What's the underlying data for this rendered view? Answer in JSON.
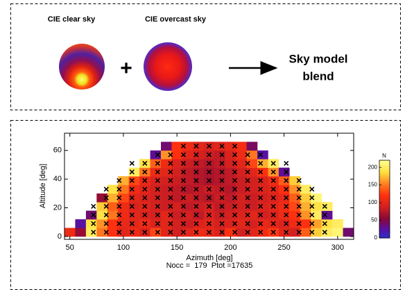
{
  "diagram": {
    "left_label": "CIE clear sky",
    "middle_label": "CIE overcast sky",
    "operator": "+",
    "result_lines": [
      "Sky model",
      "blend"
    ]
  },
  "chart_data": {
    "type": "heatmap",
    "x_label": "Azimuth [deg]",
    "y_label": "Altitude [deg]",
    "caption": "Nocc =  179  Ptot =17635",
    "colorbar_label": "N",
    "xlim": [
      45,
      315
    ],
    "ylim": [
      -2,
      72
    ],
    "xticks": [
      50,
      100,
      150,
      200,
      250,
      300
    ],
    "yticks": [
      0,
      20,
      40,
      60
    ],
    "clim": [
      0,
      220
    ],
    "cticks": [
      0,
      50,
      100,
      150,
      200
    ],
    "az_edges": [
      45,
      55,
      65,
      75,
      85,
      95,
      105,
      115,
      125,
      135,
      145,
      155,
      165,
      175,
      185,
      195,
      205,
      215,
      225,
      235,
      245,
      255,
      265,
      275,
      285,
      295,
      305,
      315
    ],
    "alt_edges": [
      0,
      6,
      12,
      18,
      24,
      30,
      36,
      42,
      48,
      54,
      60,
      66
    ],
    "values": [
      [
        110,
        60,
        200,
        150,
        120,
        100,
        110,
        95,
        130,
        100,
        90,
        100,
        110,
        105,
        95,
        120,
        90,
        100,
        110,
        125,
        100,
        90,
        140,
        180,
        200,
        210,
        40
      ],
      [
        null,
        25,
        190,
        160,
        120,
        105,
        100,
        110,
        95,
        100,
        90,
        85,
        95,
        100,
        90,
        95,
        100,
        90,
        105,
        100,
        95,
        110,
        120,
        165,
        190,
        200,
        null
      ],
      [
        null,
        null,
        40,
        190,
        150,
        110,
        100,
        95,
        90,
        100,
        85,
        90,
        80,
        95,
        85,
        90,
        95,
        100,
        90,
        95,
        110,
        120,
        160,
        200,
        30,
        null,
        null
      ],
      [
        null,
        null,
        null,
        180,
        140,
        110,
        95,
        100,
        90,
        85,
        90,
        80,
        85,
        90,
        80,
        85,
        90,
        85,
        95,
        100,
        110,
        130,
        170,
        190,
        200,
        null,
        null
      ],
      [
        null,
        null,
        null,
        60,
        170,
        130,
        100,
        95,
        90,
        85,
        80,
        85,
        80,
        75,
        85,
        80,
        90,
        85,
        90,
        95,
        105,
        140,
        180,
        210,
        null,
        null,
        null
      ],
      [
        null,
        null,
        null,
        null,
        190,
        150,
        110,
        100,
        90,
        85,
        80,
        75,
        80,
        85,
        80,
        75,
        85,
        90,
        95,
        100,
        120,
        160,
        200,
        null,
        null,
        null,
        null
      ],
      [
        null,
        null,
        null,
        null,
        null,
        170,
        130,
        105,
        95,
        90,
        85,
        80,
        75,
        70,
        75,
        80,
        85,
        90,
        95,
        110,
        140,
        180,
        null,
        null,
        null,
        null,
        null
      ],
      [
        null,
        null,
        null,
        null,
        null,
        null,
        200,
        150,
        110,
        100,
        90,
        80,
        75,
        70,
        75,
        80,
        90,
        100,
        120,
        160,
        30,
        null,
        null,
        null,
        null,
        null,
        null
      ],
      [
        null,
        null,
        null,
        null,
        null,
        null,
        null,
        190,
        140,
        110,
        95,
        85,
        80,
        75,
        80,
        90,
        100,
        130,
        170,
        200,
        null,
        null,
        null,
        null,
        null,
        null,
        null
      ],
      [
        null,
        null,
        null,
        null,
        null,
        null,
        null,
        null,
        30,
        160,
        120,
        100,
        90,
        85,
        80,
        95,
        110,
        150,
        25,
        null,
        null,
        null,
        null,
        null,
        null,
        null,
        null
      ],
      [
        null,
        null,
        null,
        null,
        null,
        null,
        null,
        null,
        null,
        40,
        120,
        110,
        100,
        95,
        100,
        105,
        115,
        45,
        null,
        null,
        null,
        null,
        null,
        null,
        null,
        null,
        null
      ]
    ],
    "crosses": [
      {
        "alt": 3,
        "az": [
          72,
          84,
          96,
          108,
          120,
          132,
          144,
          156,
          168,
          180,
          192,
          204,
          216,
          228,
          240,
          252,
          264,
          276,
          288
        ]
      },
      {
        "alt": 9,
        "az": [
          72,
          84,
          96,
          108,
          120,
          132,
          144,
          156,
          168,
          180,
          192,
          204,
          216,
          228,
          240,
          252,
          264,
          276,
          288
        ]
      },
      {
        "alt": 15,
        "az": [
          72,
          84,
          96,
          108,
          120,
          132,
          144,
          156,
          168,
          180,
          192,
          204,
          216,
          228,
          240,
          252,
          264,
          276,
          288
        ]
      },
      {
        "alt": 21,
        "az": [
          72,
          84,
          96,
          108,
          120,
          132,
          144,
          156,
          168,
          180,
          192,
          204,
          216,
          228,
          240,
          252,
          264,
          276,
          288
        ]
      },
      {
        "alt": 27,
        "az": [
          84,
          96,
          108,
          120,
          132,
          144,
          156,
          168,
          180,
          192,
          204,
          216,
          228,
          240,
          252,
          264,
          276
        ]
      },
      {
        "alt": 33,
        "az": [
          84,
          96,
          108,
          120,
          132,
          144,
          156,
          168,
          180,
          192,
          204,
          216,
          228,
          240,
          252,
          264,
          276
        ]
      },
      {
        "alt": 39,
        "az": [
          96,
          108,
          120,
          132,
          144,
          156,
          168,
          180,
          192,
          204,
          216,
          228,
          240,
          252,
          264
        ]
      },
      {
        "alt": 45,
        "az": [
          108,
          120,
          132,
          144,
          156,
          168,
          180,
          192,
          204,
          216,
          228,
          240,
          252
        ]
      },
      {
        "alt": 51,
        "az": [
          108,
          120,
          132,
          144,
          156,
          168,
          180,
          192,
          204,
          216,
          228,
          240,
          252
        ]
      },
      {
        "alt": 57,
        "az": [
          132,
          144,
          156,
          168,
          180,
          192,
          204,
          216,
          228
        ]
      },
      {
        "alt": 63,
        "az": [
          156,
          168,
          180,
          192,
          204
        ]
      }
    ]
  }
}
